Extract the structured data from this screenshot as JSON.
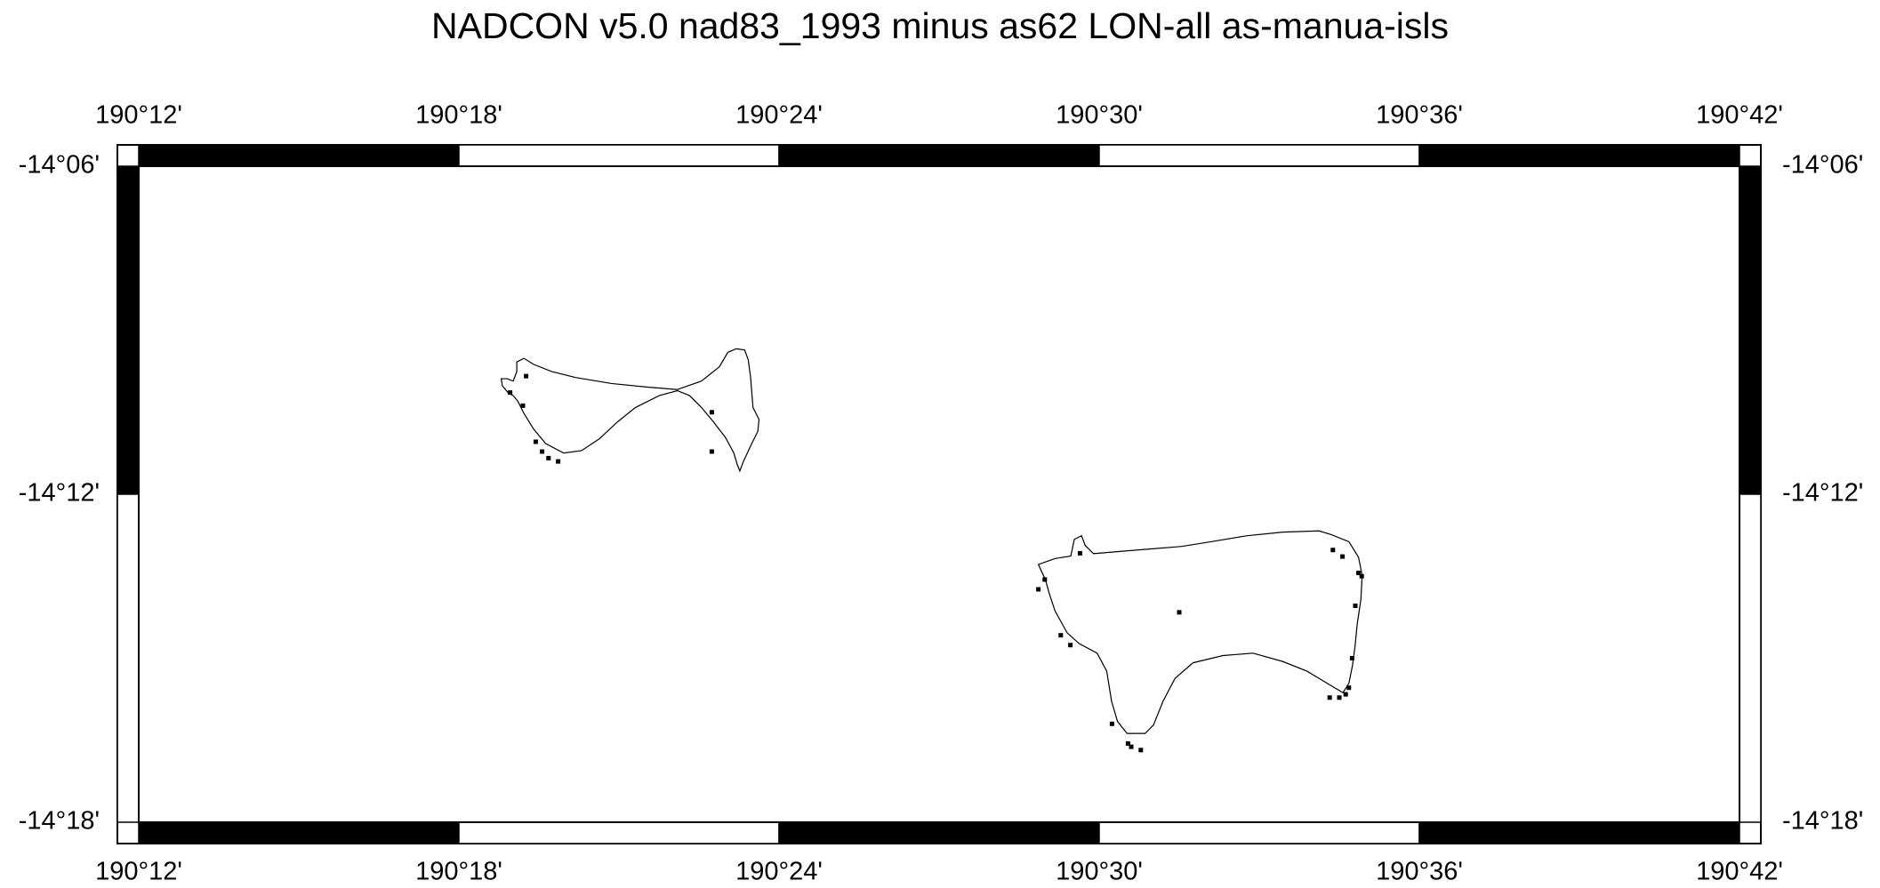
{
  "chart_data": {
    "type": "scatter",
    "title": "NADCON v5.0 nad83_1993 minus as62 LON-all  as-manua-isls",
    "xlim": [
      190.2,
      190.7
    ],
    "ylim": [
      -14.3,
      -14.1
    ],
    "xticks": [
      {
        "value": 190.2,
        "label": "190°12'"
      },
      {
        "value": 190.3,
        "label": "190°18'"
      },
      {
        "value": 190.4,
        "label": "190°24'"
      },
      {
        "value": 190.5,
        "label": "190°30'"
      },
      {
        "value": 190.6,
        "label": "190°36'"
      },
      {
        "value": 190.7,
        "label": "190°42'"
      }
    ],
    "yticks": [
      {
        "value": -14.1,
        "label": "-14°06'"
      },
      {
        "value": -14.2,
        "label": "-14°12'"
      },
      {
        "value": -14.3,
        "label": "-14°18'"
      }
    ],
    "color": "#000000",
    "x": [
      190.321,
      190.316,
      190.32,
      190.324,
      190.326,
      190.328,
      190.331,
      190.379,
      190.379,
      190.494,
      190.483,
      190.481,
      190.488,
      190.491,
      190.525,
      190.573,
      190.576,
      190.581,
      190.582,
      190.58,
      190.579,
      190.578,
      190.577,
      190.575,
      190.572,
      190.504,
      190.509,
      190.51,
      190.513
    ],
    "y": [
      -14.164,
      -14.169,
      -14.173,
      -14.184,
      -14.187,
      -14.189,
      -14.19,
      -14.175,
      -14.187,
      -14.218,
      -14.226,
      -14.229,
      -14.243,
      -14.246,
      -14.236,
      -14.217,
      -14.219,
      -14.224,
      -14.225,
      -14.234,
      -14.25,
      -14.259,
      -14.261,
      -14.262,
      -14.262,
      -14.27,
      -14.276,
      -14.277,
      -14.278
    ]
  }
}
